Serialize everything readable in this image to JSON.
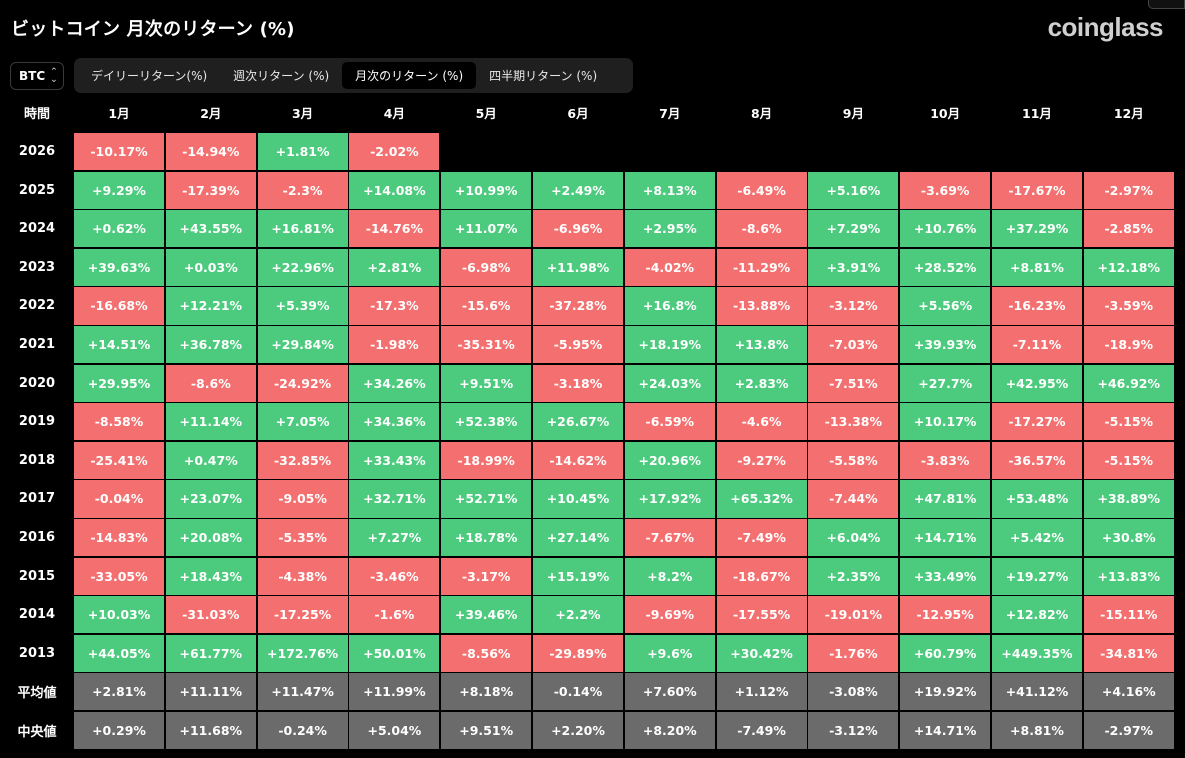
{
  "header": {
    "title": "ビットコイン 月次のリターン (%)",
    "logo": "coinglass"
  },
  "asset_select": {
    "value": "BTC"
  },
  "tabs": [
    {
      "label": "デイリーリターン(%)",
      "active": false
    },
    {
      "label": "週次リターン (%)",
      "active": false
    },
    {
      "label": "月次のリターン (%)",
      "active": true
    },
    {
      "label": "四半期リターン (%)",
      "active": false
    }
  ],
  "table": {
    "corner_label": "時間",
    "months": [
      "1月",
      "2月",
      "3月",
      "4月",
      "5月",
      "6月",
      "7月",
      "8月",
      "9月",
      "10月",
      "11月",
      "12月"
    ],
    "rows": [
      {
        "year": "2026",
        "values": [
          "-10.17%",
          "-14.94%",
          "+1.81%",
          "-2.02%",
          "",
          "",
          "",
          "",
          "",
          "",
          "",
          ""
        ]
      },
      {
        "year": "2025",
        "values": [
          "+9.29%",
          "-17.39%",
          "-2.3%",
          "+14.08%",
          "+10.99%",
          "+2.49%",
          "+8.13%",
          "-6.49%",
          "+5.16%",
          "-3.69%",
          "-17.67%",
          "-2.97%"
        ]
      },
      {
        "year": "2024",
        "values": [
          "+0.62%",
          "+43.55%",
          "+16.81%",
          "-14.76%",
          "+11.07%",
          "-6.96%",
          "+2.95%",
          "-8.6%",
          "+7.29%",
          "+10.76%",
          "+37.29%",
          "-2.85%"
        ]
      },
      {
        "year": "2023",
        "values": [
          "+39.63%",
          "+0.03%",
          "+22.96%",
          "+2.81%",
          "-6.98%",
          "+11.98%",
          "-4.02%",
          "-11.29%",
          "+3.91%",
          "+28.52%",
          "+8.81%",
          "+12.18%"
        ]
      },
      {
        "year": "2022",
        "values": [
          "-16.68%",
          "+12.21%",
          "+5.39%",
          "-17.3%",
          "-15.6%",
          "-37.28%",
          "+16.8%",
          "-13.88%",
          "-3.12%",
          "+5.56%",
          "-16.23%",
          "-3.59%"
        ]
      },
      {
        "year": "2021",
        "values": [
          "+14.51%",
          "+36.78%",
          "+29.84%",
          "-1.98%",
          "-35.31%",
          "-5.95%",
          "+18.19%",
          "+13.8%",
          "-7.03%",
          "+39.93%",
          "-7.11%",
          "-18.9%"
        ]
      },
      {
        "year": "2020",
        "values": [
          "+29.95%",
          "-8.6%",
          "-24.92%",
          "+34.26%",
          "+9.51%",
          "-3.18%",
          "+24.03%",
          "+2.83%",
          "-7.51%",
          "+27.7%",
          "+42.95%",
          "+46.92%"
        ]
      },
      {
        "year": "2019",
        "values": [
          "-8.58%",
          "+11.14%",
          "+7.05%",
          "+34.36%",
          "+52.38%",
          "+26.67%",
          "-6.59%",
          "-4.6%",
          "-13.38%",
          "+10.17%",
          "-17.27%",
          "-5.15%"
        ]
      },
      {
        "year": "2018",
        "values": [
          "-25.41%",
          "+0.47%",
          "-32.85%",
          "+33.43%",
          "-18.99%",
          "-14.62%",
          "+20.96%",
          "-9.27%",
          "-5.58%",
          "-3.83%",
          "-36.57%",
          "-5.15%"
        ]
      },
      {
        "year": "2017",
        "values": [
          "-0.04%",
          "+23.07%",
          "-9.05%",
          "+32.71%",
          "+52.71%",
          "+10.45%",
          "+17.92%",
          "+65.32%",
          "-7.44%",
          "+47.81%",
          "+53.48%",
          "+38.89%"
        ]
      },
      {
        "year": "2016",
        "values": [
          "-14.83%",
          "+20.08%",
          "-5.35%",
          "+7.27%",
          "+18.78%",
          "+27.14%",
          "-7.67%",
          "-7.49%",
          "+6.04%",
          "+14.71%",
          "+5.42%",
          "+30.8%"
        ]
      },
      {
        "year": "2015",
        "values": [
          "-33.05%",
          "+18.43%",
          "-4.38%",
          "-3.46%",
          "-3.17%",
          "+15.19%",
          "+8.2%",
          "-18.67%",
          "+2.35%",
          "+33.49%",
          "+19.27%",
          "+13.83%"
        ]
      },
      {
        "year": "2014",
        "values": [
          "+10.03%",
          "-31.03%",
          "-17.25%",
          "-1.6%",
          "+39.46%",
          "+2.2%",
          "-9.69%",
          "-17.55%",
          "-19.01%",
          "-12.95%",
          "+12.82%",
          "-15.11%"
        ]
      },
      {
        "year": "2013",
        "values": [
          "+44.05%",
          "+61.77%",
          "+172.76%",
          "+50.01%",
          "-8.56%",
          "-29.89%",
          "+9.6%",
          "+30.42%",
          "-1.76%",
          "+60.79%",
          "+449.35%",
          "-34.81%"
        ]
      }
    ],
    "stats": [
      {
        "label": "平均値",
        "values": [
          "+2.81%",
          "+11.11%",
          "+11.47%",
          "+11.99%",
          "+8.18%",
          "-0.14%",
          "+7.60%",
          "+1.12%",
          "-3.08%",
          "+19.92%",
          "+41.12%",
          "+4.16%"
        ]
      },
      {
        "label": "中央値",
        "values": [
          "+0.29%",
          "+11.68%",
          "-0.24%",
          "+5.04%",
          "+9.51%",
          "+2.20%",
          "+8.20%",
          "-7.49%",
          "-3.12%",
          "+14.71%",
          "+8.81%",
          "-2.97%"
        ]
      }
    ]
  },
  "colors": {
    "positive": "#4ccb7e",
    "negative": "#f46f6f",
    "stat": "#6b6b6b",
    "background": "#000000"
  }
}
